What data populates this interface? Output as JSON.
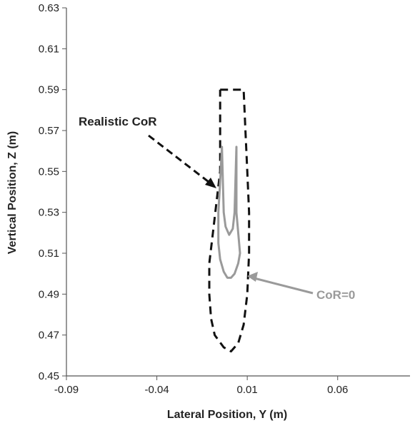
{
  "chart_data": {
    "type": "line",
    "xlabel": "Lateral Position, Y (m)",
    "ylabel": "Vertical Position, Z (m)",
    "xlim": [
      -0.09,
      0.1
    ],
    "ylim": [
      0.45,
      0.63
    ],
    "x_ticks": [
      -0.09,
      -0.04,
      0.01,
      0.06
    ],
    "x_tick_labels": [
      "-0.09",
      "-0.04",
      "0.01",
      "0.06"
    ],
    "y_ticks": [
      0.45,
      0.47,
      0.49,
      0.51,
      0.53,
      0.55,
      0.57,
      0.59,
      0.61,
      0.63
    ],
    "y_tick_labels": [
      "0.45",
      "0.47",
      "0.49",
      "0.51",
      "0.53",
      "0.55",
      "0.57",
      "0.59",
      "0.61",
      "0.63"
    ],
    "grid": false,
    "legend": "none",
    "series": [
      {
        "name": "Realistic CoR",
        "color": "#111111",
        "style": "dashed",
        "points": [
          [
            -0.005,
            0.59
          ],
          [
            0.008,
            0.59
          ],
          [
            0.009,
            0.57
          ],
          [
            0.01,
            0.55
          ],
          [
            0.011,
            0.53
          ],
          [
            0.011,
            0.51
          ],
          [
            0.01,
            0.49
          ],
          [
            0.008,
            0.475
          ],
          [
            0.005,
            0.466
          ],
          [
            0.001,
            0.462
          ],
          [
            -0.003,
            0.464
          ],
          [
            -0.008,
            0.47
          ],
          [
            -0.01,
            0.478
          ],
          [
            -0.011,
            0.49
          ],
          [
            -0.011,
            0.505
          ],
          [
            -0.009,
            0.52
          ],
          [
            -0.007,
            0.535
          ],
          [
            -0.005,
            0.55
          ],
          [
            -0.005,
            0.57
          ],
          [
            -0.005,
            0.59
          ]
        ]
      },
      {
        "name": "CoR=0",
        "color": "#9a9a9a",
        "style": "solid",
        "points": [
          [
            -0.004,
            0.562
          ],
          [
            -0.003,
            0.53
          ],
          [
            -0.002,
            0.523
          ],
          [
            0.0,
            0.519
          ],
          [
            0.002,
            0.522
          ],
          [
            0.003,
            0.53
          ],
          [
            0.004,
            0.562
          ],
          [
            0.004,
            0.53
          ],
          [
            0.005,
            0.52
          ],
          [
            0.006,
            0.51
          ],
          [
            0.005,
            0.505
          ],
          [
            0.003,
            0.5
          ],
          [
            0.001,
            0.498
          ],
          [
            -0.001,
            0.498
          ],
          [
            -0.003,
            0.501
          ],
          [
            -0.005,
            0.507
          ],
          [
            -0.006,
            0.515
          ],
          [
            -0.006,
            0.53
          ],
          [
            -0.005,
            0.545
          ],
          [
            -0.004,
            0.562
          ]
        ]
      }
    ],
    "annotations": [
      {
        "text": "Realistic CoR",
        "color": "#222222"
      },
      {
        "text": "CoR=0",
        "color": "#9a9a9a"
      }
    ]
  }
}
